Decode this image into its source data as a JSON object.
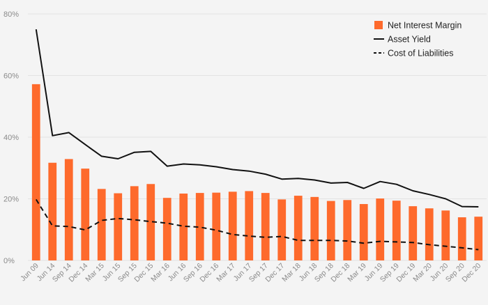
{
  "chart_data": {
    "type": "bar+line",
    "title": "",
    "xlabel": "",
    "ylabel": "",
    "ylim": [
      0,
      80
    ],
    "ytick_values": [
      0,
      20,
      40,
      60,
      80
    ],
    "ytick_labels": [
      "0%",
      "20%",
      "40%",
      "60%",
      "80%"
    ],
    "grid": true,
    "legend_position": "top-right",
    "categories": [
      "Jun 09",
      "Jun 14",
      "Sep 14",
      "Dec 14",
      "Mar 15",
      "Jun 15",
      "Sep 15",
      "Dec 15",
      "Mar 16",
      "Jun 16",
      "Sep 16",
      "Dec 16",
      "Mar 17",
      "Jun 17",
      "Sep 17",
      "Dec 17",
      "Mar 18",
      "Jun 18",
      "Sep 18",
      "Dec 18",
      "Mar 19",
      "Jun 19",
      "Sep 19",
      "Dec 19",
      "Mar 20",
      "Jun 20",
      "Sep 20",
      "Dec 20"
    ],
    "series": [
      {
        "name": "Net Interest Margin",
        "type": "bar",
        "color": "#fe6a2c",
        "values": [
          57.2,
          31.7,
          32.9,
          29.8,
          23.2,
          21.8,
          24.1,
          24.8,
          20.3,
          21.7,
          21.9,
          22.0,
          22.3,
          22.5,
          21.9,
          19.8,
          21.0,
          20.6,
          19.3,
          19.6,
          18.3,
          20.1,
          19.4,
          17.6,
          16.9,
          16.2,
          14.0,
          14.2
        ]
      },
      {
        "name": "Asset Yield",
        "type": "line",
        "color": "#111111",
        "dash": "solid",
        "values": [
          75.0,
          40.5,
          41.5,
          37.6,
          33.8,
          33.0,
          35.1,
          35.4,
          30.6,
          31.3,
          31.0,
          30.4,
          29.5,
          29.0,
          28.0,
          26.4,
          26.6,
          26.1,
          25.1,
          25.3,
          23.4,
          25.6,
          24.7,
          22.6,
          21.4,
          20.0,
          17.5,
          17.4
        ]
      },
      {
        "name": "Cost of Liabilities",
        "type": "line",
        "color": "#111111",
        "dash": "dashed",
        "values": [
          19.8,
          11.2,
          11.0,
          9.9,
          13.0,
          13.6,
          13.2,
          12.6,
          12.1,
          11.1,
          10.8,
          9.8,
          8.4,
          7.9,
          7.5,
          7.8,
          6.5,
          6.5,
          6.5,
          6.3,
          5.6,
          6.2,
          6.0,
          5.8,
          5.1,
          4.6,
          4.1,
          3.5
        ]
      }
    ]
  }
}
